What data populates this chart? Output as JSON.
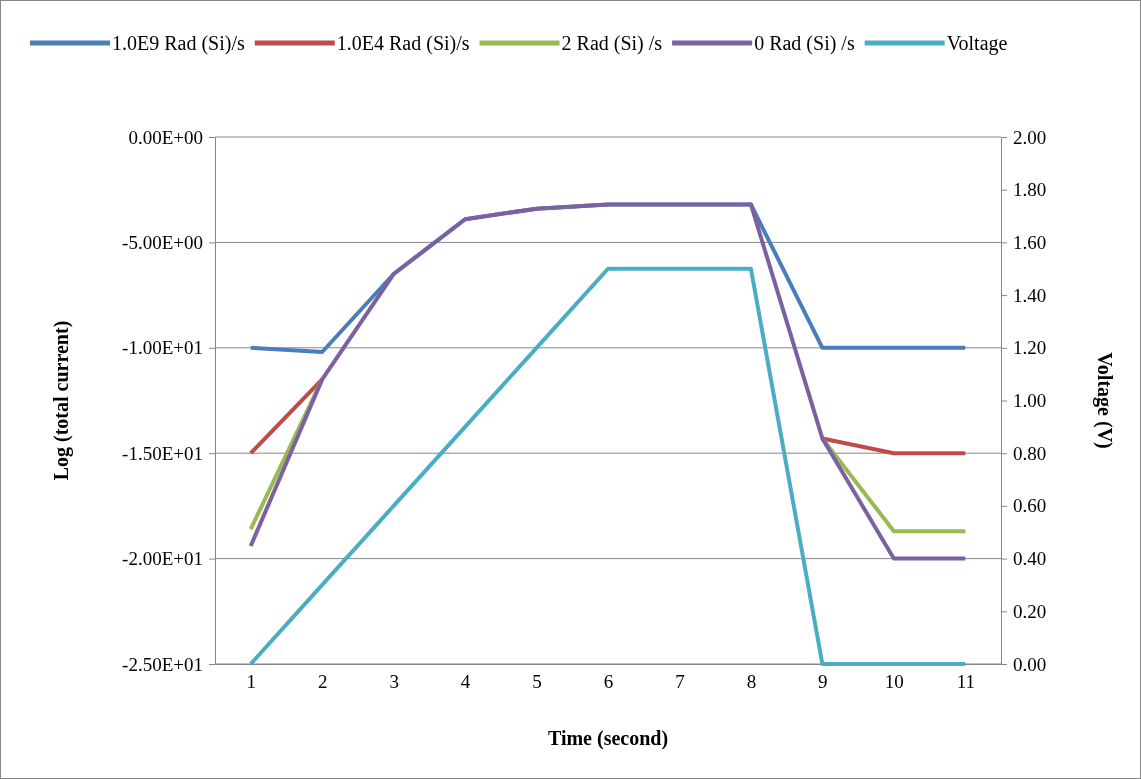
{
  "chart_data": {
    "type": "line",
    "xlabel": "Time (second)",
    "ylabel": "Log (total current)",
    "y2label": "Voltage (V)",
    "categories": [
      "1",
      "2",
      "3",
      "4",
      "5",
      "6",
      "7",
      "8",
      "9",
      "10",
      "11"
    ],
    "series": [
      {
        "name": "1.0E9 Rad (Si)/s",
        "color": "#4a7ebb",
        "values": [
          -10,
          -10.2,
          -6.5,
          -3.9,
          -3.4,
          -3.2,
          -3.2,
          -3.2,
          -10,
          -10,
          -10
        ]
      },
      {
        "name": "1.0E4 Rad (Si)/s",
        "color": "#be4b48",
        "values": [
          -15,
          -11.5,
          null,
          null,
          null,
          null,
          null,
          null,
          -14.3,
          -15,
          -15
        ]
      },
      {
        "name": "2 Rad (Si) /s",
        "color": "#98b954",
        "values": [
          -18.6,
          -11.5,
          null,
          null,
          null,
          null,
          null,
          null,
          -14.3,
          -18.7,
          -18.7
        ]
      },
      {
        "name": "0 Rad (Si) /s",
        "color": "#7d60a0",
        "values": [
          -19.4,
          -11.5,
          -6.5,
          -3.9,
          -3.4,
          -3.2,
          -3.2,
          -3.2,
          -14.3,
          -20,
          -20
        ]
      },
      {
        "name": "Voltage",
        "color": "#4bacc6",
        "axis": "y2",
        "values": [
          0,
          0.3,
          0.6,
          0.9,
          1.2,
          1.5,
          1.5,
          1.5,
          0,
          0,
          0
        ]
      }
    ],
    "ylim": [
      -25,
      0
    ],
    "yticks": [
      {
        "value": -25,
        "label": "-2.50E+01"
      },
      {
        "value": -20,
        "label": "-2.00E+01"
      },
      {
        "value": -15,
        "label": "-1.50E+01"
      },
      {
        "value": -10,
        "label": "-1.00E+01"
      },
      {
        "value": -5,
        "label": "-5.00E+00"
      },
      {
        "value": 0,
        "label": "0.00E+00"
      }
    ],
    "y2lim": [
      0,
      2
    ],
    "y2ticks": [
      {
        "value": 0,
        "label": "0.00"
      },
      {
        "value": 0.2,
        "label": "0.20"
      },
      {
        "value": 0.4,
        "label": "0.40"
      },
      {
        "value": 0.6,
        "label": "0.60"
      },
      {
        "value": 0.8,
        "label": "0.80"
      },
      {
        "value": 1,
        "label": "1.00"
      },
      {
        "value": 1.2,
        "label": "1.20"
      },
      {
        "value": 1.4,
        "label": "1.40"
      },
      {
        "value": 1.6,
        "label": "1.60"
      },
      {
        "value": 1.8,
        "label": "1.80"
      },
      {
        "value": 2,
        "label": "2.00"
      }
    ],
    "grid": "y",
    "legend": "top",
    "marker": "none",
    "line_style": "solid"
  }
}
